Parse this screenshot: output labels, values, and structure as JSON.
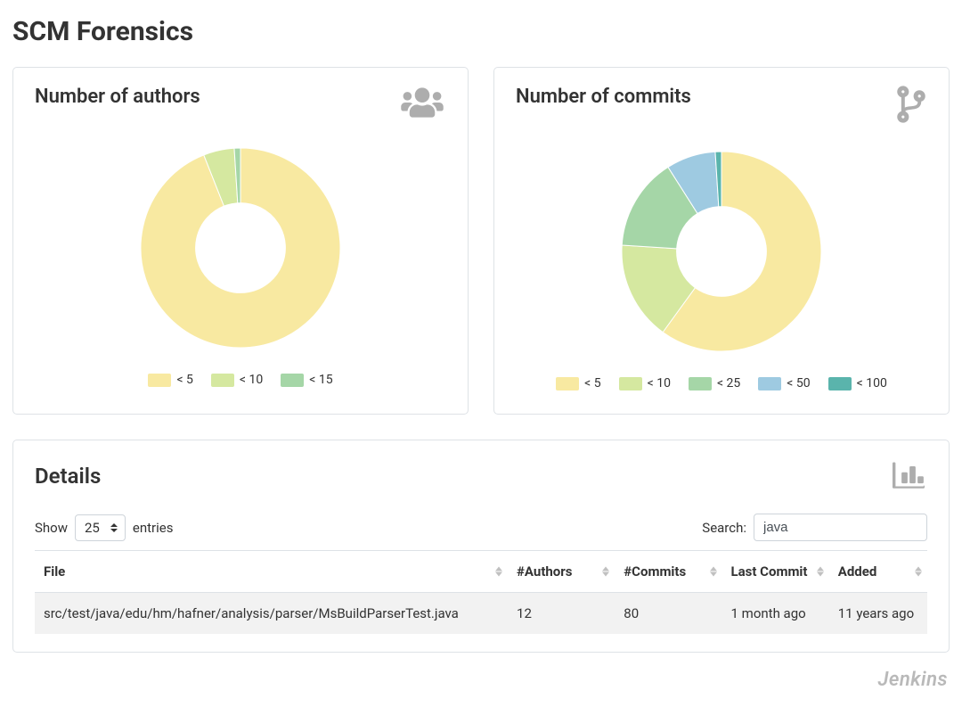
{
  "page": {
    "title": "SCM Forensics"
  },
  "authors_chart": {
    "title": "Number of authors",
    "type": "donut",
    "inner_radius": 0.45,
    "background_color": "#ffffff",
    "slices": [
      {
        "label": "< 5",
        "value": 94,
        "color": "#f8e9a1"
      },
      {
        "label": "< 10",
        "value": 5,
        "color": "#d5e8a0"
      },
      {
        "label": "< 15",
        "value": 1,
        "color": "#a5d6a7"
      }
    ],
    "legend_fontsize": 14,
    "legend_colors": [
      "#f8e9a1",
      "#d5e8a0",
      "#a5d6a7"
    ]
  },
  "commits_chart": {
    "title": "Number of commits",
    "type": "donut",
    "inner_radius": 0.45,
    "background_color": "#ffffff",
    "slices": [
      {
        "label": "< 5",
        "value": 60,
        "color": "#f8e9a1"
      },
      {
        "label": "< 10",
        "value": 16,
        "color": "#d5e8a0"
      },
      {
        "label": "< 25",
        "value": 15,
        "color": "#a5d6a7"
      },
      {
        "label": "< 50",
        "value": 8,
        "color": "#9ecae1"
      },
      {
        "label": "< 100",
        "value": 1,
        "color": "#5ab4ac"
      }
    ],
    "legend_fontsize": 14,
    "legend_colors": [
      "#f8e9a1",
      "#d5e8a0",
      "#a5d6a7",
      "#9ecae1",
      "#5ab4ac"
    ]
  },
  "details": {
    "title": "Details",
    "show_label": "Show",
    "entries_label": "entries",
    "page_length": "25",
    "search_label": "Search:",
    "search_value": "java",
    "columns": [
      {
        "key": "file",
        "label": "File"
      },
      {
        "key": "authors",
        "label": "#Authors"
      },
      {
        "key": "commits",
        "label": "#Commits"
      },
      {
        "key": "last_commit",
        "label": "Last Commit"
      },
      {
        "key": "added",
        "label": "Added"
      }
    ],
    "rows": [
      {
        "file": "src/test/java/edu/hm/hafner/analysis/parser/MsBuildParserTest.java",
        "authors": "12",
        "commits": "80",
        "last_commit": "1 month ago",
        "added": "11 years ago"
      }
    ]
  },
  "watermark": "Jenkins",
  "colors": {
    "border": "#dee2e6",
    "icon": "#adadad",
    "text": "#333333",
    "row_stripe": "#f2f2f2"
  }
}
